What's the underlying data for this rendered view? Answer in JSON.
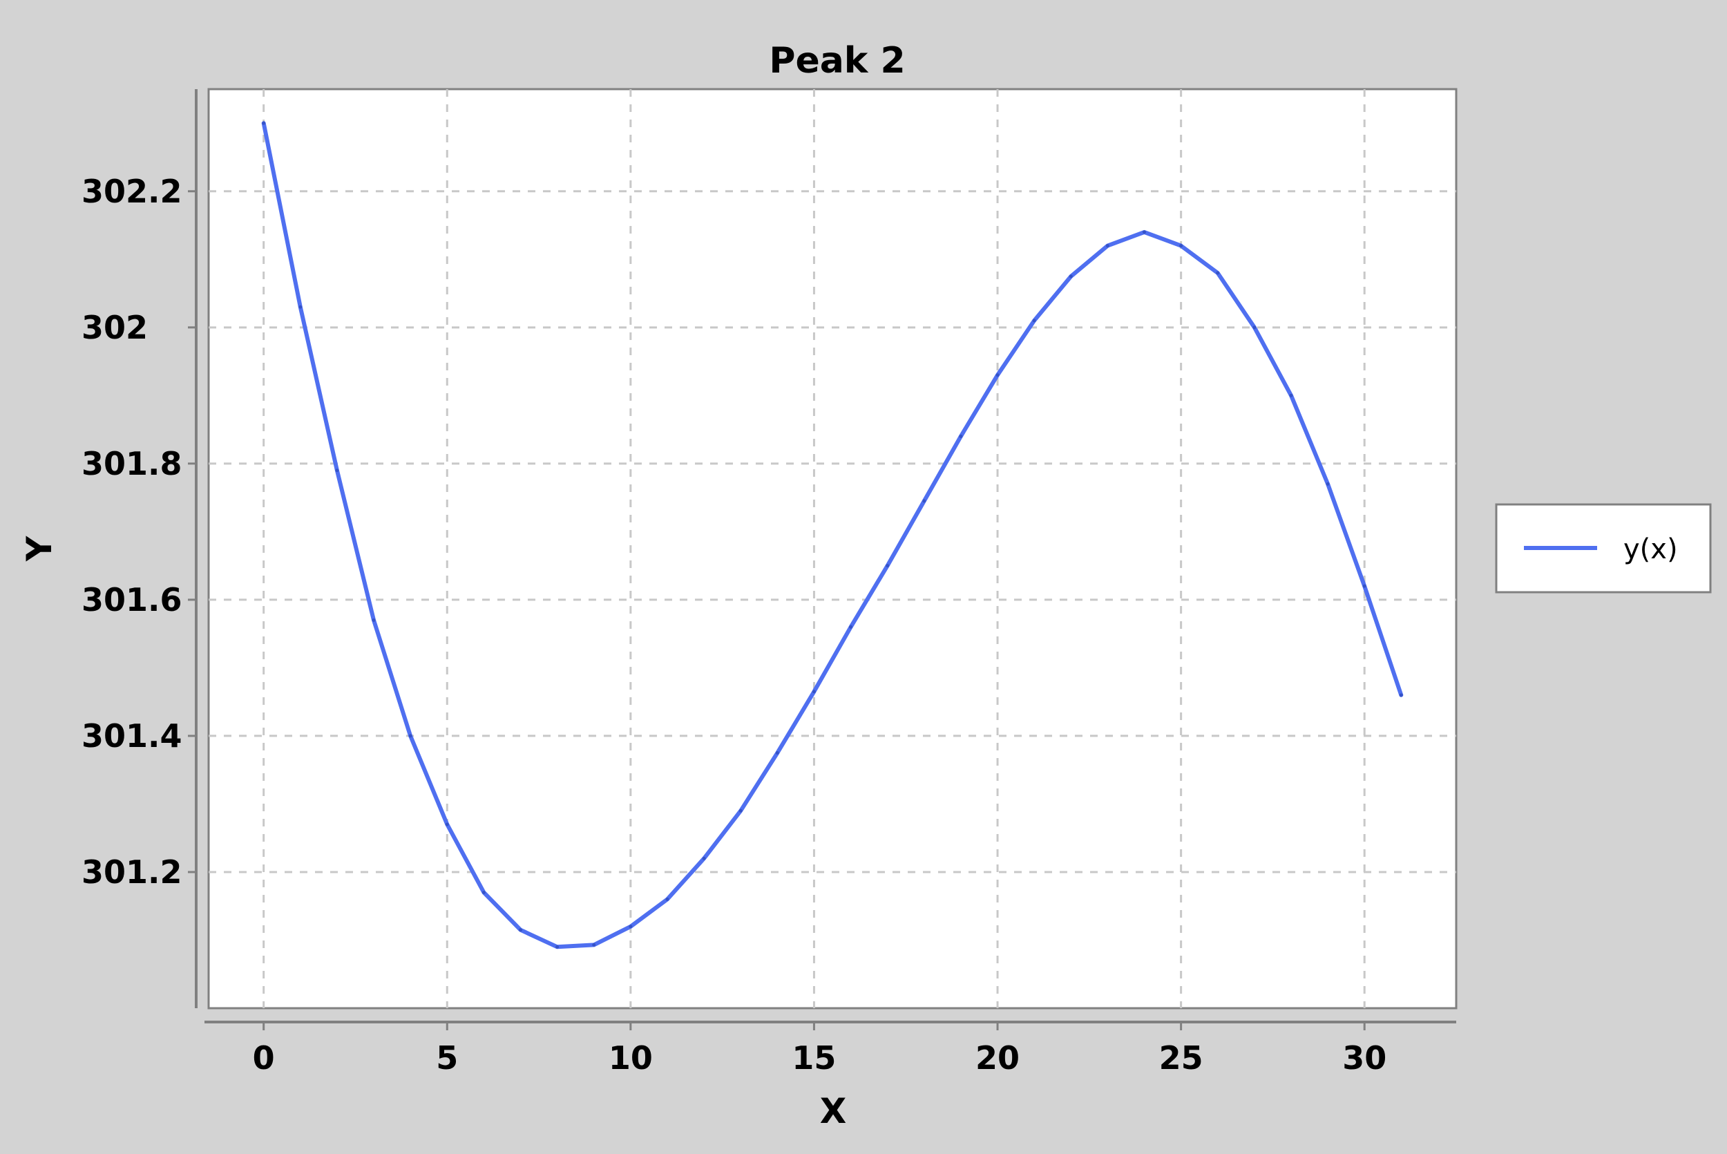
{
  "chart_data": {
    "type": "line",
    "title": "Peak 2",
    "xlabel": "X",
    "ylabel": "Y",
    "xlim": [
      -1.5,
      32.5
    ],
    "ylim": [
      301.0,
      302.35
    ],
    "xticks": [
      0,
      5,
      10,
      15,
      20,
      25,
      30
    ],
    "yticks": [
      301.2,
      301.4,
      301.6,
      301.8,
      302.0,
      302.2
    ],
    "ytick_labels": [
      "301.2",
      "301.4",
      "301.6",
      "301.8",
      "302",
      "302.2"
    ],
    "grid": true,
    "legend_position": "right",
    "series": [
      {
        "name": "y(x)",
        "color": "#4f6ff0",
        "x": [
          0,
          1,
          2,
          3,
          4,
          5,
          6,
          7,
          8,
          9,
          10,
          11,
          12,
          13,
          14,
          15,
          16,
          17,
          18,
          19,
          20,
          21,
          22,
          23,
          24,
          25,
          26,
          27,
          28,
          29,
          30,
          31
        ],
        "y": [
          302.3,
          302.03,
          301.79,
          301.57,
          301.4,
          301.27,
          301.17,
          301.115,
          301.09,
          301.093,
          301.12,
          301.16,
          301.22,
          301.29,
          301.375,
          301.465,
          301.56,
          301.65,
          301.745,
          301.84,
          301.93,
          302.01,
          302.075,
          302.12,
          302.14,
          302.12,
          302.08,
          302.0,
          301.9,
          301.77,
          301.62,
          301.46
        ]
      }
    ]
  }
}
